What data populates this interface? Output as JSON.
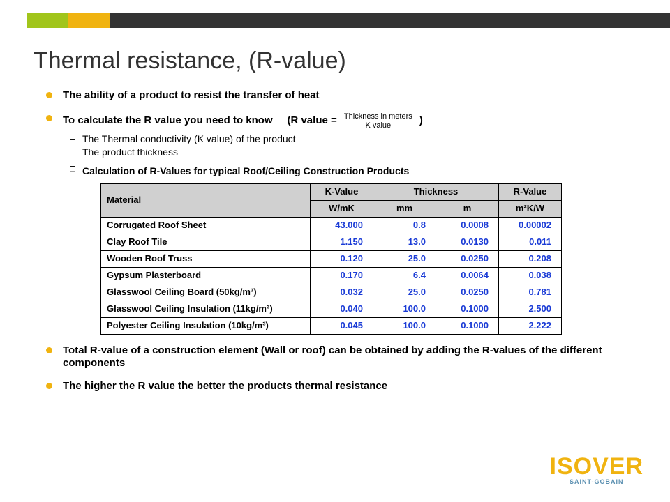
{
  "header": {
    "bar_colors": [
      "#ffffff",
      "#a1c51b",
      "#f0b310",
      "#333333"
    ]
  },
  "title": "Thermal resistance, (R-value)",
  "bullets": {
    "b1": "The ability of a product to resist the transfer of heat",
    "b2_prefix": "To calculate the R value you need to know",
    "b2_formula_lead": "(R value =",
    "b2_formula_num": "Thickness in meters",
    "b2_formula_den": "K value",
    "b2_formula_tail": ")",
    "b2_sub1": "The Thermal conductivity (K value) of the product",
    "b2_sub2": "The product thickness",
    "b2_sub3": "Calculation of R-Values for typical Roof/Ceiling Construction Products",
    "b3": "Total R-value of a construction element (Wall or roof) can be obtained by adding the R-values of  the different components",
    "b4": "The higher the R value the better the products thermal resistance"
  },
  "table": {
    "columns": {
      "material": "Material",
      "kvalue": "K-Value",
      "thickness": "Thickness",
      "rvalue": "R-Value",
      "kvalue_unit": "W/mK",
      "thickness_mm": "mm",
      "thickness_m": "m",
      "rvalue_unit": "m²K/W"
    },
    "header_bg": "#d0d0d0",
    "value_color": "#1a3bd6",
    "border_color": "#000000",
    "rows": [
      {
        "material": "Corrugated Roof Sheet",
        "k": "43.000",
        "mm": "0.8",
        "m": "0.0008",
        "r": "0.00002"
      },
      {
        "material": "Clay Roof Tile",
        "k": "1.150",
        "mm": "13.0",
        "m": "0.0130",
        "r": "0.011"
      },
      {
        "material": "Wooden Roof Truss",
        "k": "0.120",
        "mm": "25.0",
        "m": "0.0250",
        "r": "0.208"
      },
      {
        "material": "Gypsum Plasterboard",
        "k": "0.170",
        "mm": "6.4",
        "m": "0.0064",
        "r": "0.038"
      },
      {
        "material": "Glasswool Ceiling Board (50kg/m³)",
        "k": "0.032",
        "mm": "25.0",
        "m": "0.0250",
        "r": "0.781"
      },
      {
        "material": "Glasswool Ceiling Insulation (11kg/m³)",
        "k": "0.040",
        "mm": "100.0",
        "m": "0.1000",
        "r": "2.500"
      },
      {
        "material": "Polyester Ceiling Insulation (10kg/m³)",
        "k": "0.045",
        "mm": "100.0",
        "m": "0.1000",
        "r": "2.222"
      }
    ]
  },
  "logo": {
    "brand": "ISOVER",
    "sub": "SAINT-GOBAIN",
    "brand_color": "#f0b310",
    "sub_color": "#5a8fb0"
  }
}
